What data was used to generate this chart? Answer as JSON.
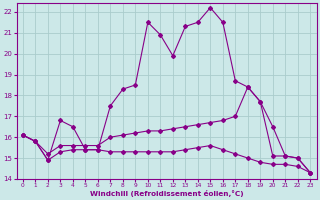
{
  "xlabel": "Windchill (Refroidissement éolien,°C)",
  "background_color": "#cce8e8",
  "grid_color": "#aacccc",
  "line_color": "#880088",
  "xlim": [
    -0.5,
    23.5
  ],
  "ylim": [
    14,
    22.4
  ],
  "xticks": [
    0,
    1,
    2,
    3,
    4,
    5,
    6,
    7,
    8,
    9,
    10,
    11,
    12,
    13,
    14,
    15,
    16,
    17,
    18,
    19,
    20,
    21,
    22,
    23
  ],
  "yticks": [
    14,
    15,
    16,
    17,
    18,
    19,
    20,
    21,
    22
  ],
  "s1_x": [
    0,
    1,
    2,
    3,
    4,
    5,
    6,
    7,
    8,
    9,
    10,
    11,
    12,
    13,
    14,
    15,
    16,
    17,
    18,
    19,
    20,
    21,
    22,
    23
  ],
  "s1_y": [
    16.1,
    15.8,
    14.9,
    16.8,
    16.5,
    15.4,
    15.4,
    17.5,
    18.3,
    18.5,
    21.5,
    20.9,
    19.9,
    21.3,
    21.5,
    22.2,
    21.5,
    18.7,
    18.4,
    17.7,
    15.1,
    15.1,
    15.0,
    14.3
  ],
  "s2_x": [
    0,
    1,
    2,
    3,
    4,
    5,
    6,
    7,
    8,
    9,
    10,
    11,
    12,
    13,
    14,
    15,
    16,
    17,
    18,
    19,
    20,
    21,
    22,
    23
  ],
  "s2_y": [
    16.1,
    15.8,
    15.2,
    15.6,
    15.6,
    15.6,
    15.6,
    16.0,
    16.1,
    16.2,
    16.3,
    16.3,
    16.4,
    16.5,
    16.6,
    16.7,
    16.8,
    17.0,
    18.4,
    17.7,
    16.5,
    15.1,
    15.0,
    14.3
  ],
  "s3_x": [
    0,
    1,
    2,
    3,
    4,
    5,
    6,
    7,
    8,
    9,
    10,
    11,
    12,
    13,
    14,
    15,
    16,
    17,
    18,
    19,
    20,
    21,
    22,
    23
  ],
  "s3_y": [
    16.1,
    15.8,
    14.9,
    15.3,
    15.4,
    15.4,
    15.4,
    15.3,
    15.3,
    15.3,
    15.3,
    15.3,
    15.3,
    15.4,
    15.5,
    15.6,
    15.4,
    15.2,
    15.0,
    14.8,
    14.7,
    14.7,
    14.6,
    14.3
  ]
}
